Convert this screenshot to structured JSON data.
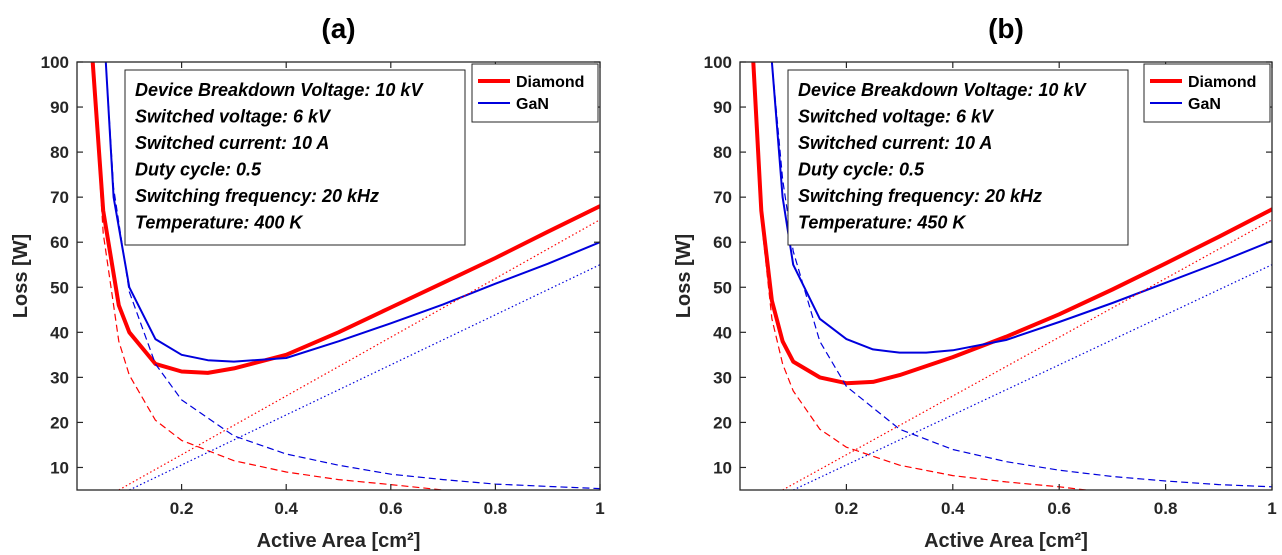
{
  "chart_data": [
    {
      "type": "line",
      "title": "(a)",
      "xlabel": "Active Area [cm²]",
      "ylabel": "Loss [W]",
      "xlim": [
        0.0,
        1.0
      ],
      "ylim": [
        5,
        100
      ],
      "xticks": [
        "0.2",
        "0.4",
        "0.6",
        "0.8",
        "1"
      ],
      "yticks": [
        "10",
        "20",
        "30",
        "40",
        "50",
        "60",
        "70",
        "80",
        "90",
        "100"
      ],
      "grid": false,
      "legend_position": "top-right",
      "info_lines": [
        "Device Breakdown Voltage: 10 kV",
        "Switched voltage: 6 kV",
        "Switched current: 10 A",
        "Duty cycle: 0.5",
        "Switching frequency: 20 kHz",
        "Temperature: 400 K"
      ],
      "series": [
        {
          "name": "Diamond",
          "color": "#ff0000",
          "style": "solid-thick",
          "x": [
            0.03,
            0.05,
            0.08,
            0.1,
            0.15,
            0.2,
            0.25,
            0.3,
            0.4,
            0.5,
            0.6,
            0.7,
            0.8,
            0.9,
            1.0
          ],
          "y": [
            100,
            67,
            46,
            40,
            33,
            31.3,
            31,
            32,
            35,
            40,
            45.5,
            51,
            56.5,
            62.3,
            68
          ]
        },
        {
          "name": "GaN",
          "color": "#0000dd",
          "style": "solid",
          "x": [
            0.055,
            0.07,
            0.1,
            0.15,
            0.2,
            0.25,
            0.3,
            0.4,
            0.5,
            0.6,
            0.7,
            0.8,
            0.9,
            1.0
          ],
          "y": [
            100,
            70,
            50,
            38.5,
            35,
            33.8,
            33.5,
            34.3,
            38,
            42,
            46.2,
            50.8,
            55.2,
            60
          ]
        },
        {
          "color": "#ff0000",
          "style": "dashed",
          "x": [
            0.03,
            0.05,
            0.08,
            0.1,
            0.15,
            0.2,
            0.3,
            0.4,
            0.5,
            0.6,
            0.7
          ],
          "y": [
            100,
            62,
            38,
            30.5,
            20.5,
            16,
            11.5,
            9,
            7.3,
            6.2,
            5
          ]
        },
        {
          "color": "#0000dd",
          "style": "dashed",
          "x": [
            0.055,
            0.07,
            0.1,
            0.15,
            0.2,
            0.3,
            0.4,
            0.5,
            0.6,
            0.7,
            0.8,
            0.9,
            1.0
          ],
          "y": [
            100,
            72,
            49,
            33,
            25,
            17,
            13,
            10.5,
            8.5,
            7.3,
            6.3,
            5.8,
            5.3
          ]
        },
        {
          "color": "#ff0000",
          "style": "dotted",
          "x": [
            0.08,
            1.0
          ],
          "y": [
            5,
            65
          ]
        },
        {
          "color": "#0000dd",
          "style": "dotted",
          "x": [
            0.1,
            1.0
          ],
          "y": [
            5,
            55
          ]
        }
      ]
    },
    {
      "type": "line",
      "title": "(b)",
      "xlabel": "Active Area [cm²]",
      "ylabel": "Loss [W]",
      "xlim": [
        0.0,
        1.0
      ],
      "ylim": [
        5,
        100
      ],
      "xticks": [
        "0.2",
        "0.4",
        "0.6",
        "0.8",
        "1"
      ],
      "yticks": [
        "10",
        "20",
        "30",
        "40",
        "50",
        "60",
        "70",
        "80",
        "90",
        "100"
      ],
      "grid": false,
      "legend_position": "top-right",
      "info_lines": [
        "Device Breakdown Voltage: 10 kV",
        "Switched voltage: 6 kV",
        "Switched current: 10 A",
        "Duty cycle: 0.5",
        "Switching frequency: 20 kHz",
        "Temperature: 450 K"
      ],
      "series": [
        {
          "name": "Diamond",
          "color": "#ff0000",
          "style": "solid-thick",
          "x": [
            0.025,
            0.04,
            0.06,
            0.08,
            0.1,
            0.15,
            0.2,
            0.25,
            0.3,
            0.4,
            0.5,
            0.6,
            0.7,
            0.8,
            0.9,
            1.0
          ],
          "y": [
            100,
            67,
            47,
            38,
            33.5,
            30,
            28.7,
            29,
            30.5,
            34.5,
            39,
            44,
            49.5,
            55.3,
            61.2,
            67.3
          ]
        },
        {
          "name": "GaN",
          "color": "#0000dd",
          "style": "solid",
          "x": [
            0.06,
            0.08,
            0.1,
            0.15,
            0.2,
            0.25,
            0.3,
            0.35,
            0.4,
            0.5,
            0.6,
            0.7,
            0.8,
            0.9,
            1.0
          ],
          "y": [
            100,
            70,
            55,
            43,
            38.5,
            36.2,
            35.5,
            35.5,
            36,
            38.3,
            42.3,
            46.5,
            51,
            55.5,
            60.3
          ]
        },
        {
          "color": "#ff0000",
          "style": "dashed",
          "x": [
            0.025,
            0.04,
            0.06,
            0.08,
            0.1,
            0.15,
            0.2,
            0.3,
            0.4,
            0.5,
            0.6,
            0.65
          ],
          "y": [
            100,
            65,
            43,
            33,
            27,
            18.5,
            14.5,
            10.5,
            8.2,
            6.8,
            5.7,
            5
          ]
        },
        {
          "color": "#0000dd",
          "style": "dashed",
          "x": [
            0.06,
            0.08,
            0.1,
            0.15,
            0.2,
            0.3,
            0.4,
            0.5,
            0.6,
            0.7,
            0.8,
            0.9,
            1.0
          ],
          "y": [
            100,
            74,
            58,
            38,
            28,
            18.5,
            14,
            11.3,
            9.4,
            8,
            7,
            6.2,
            5.7
          ]
        },
        {
          "color": "#ff0000",
          "style": "dotted",
          "x": [
            0.08,
            1.0
          ],
          "y": [
            5,
            65
          ]
        },
        {
          "color": "#0000dd",
          "style": "dotted",
          "x": [
            0.1,
            1.0
          ],
          "y": [
            5,
            55
          ]
        }
      ]
    }
  ]
}
